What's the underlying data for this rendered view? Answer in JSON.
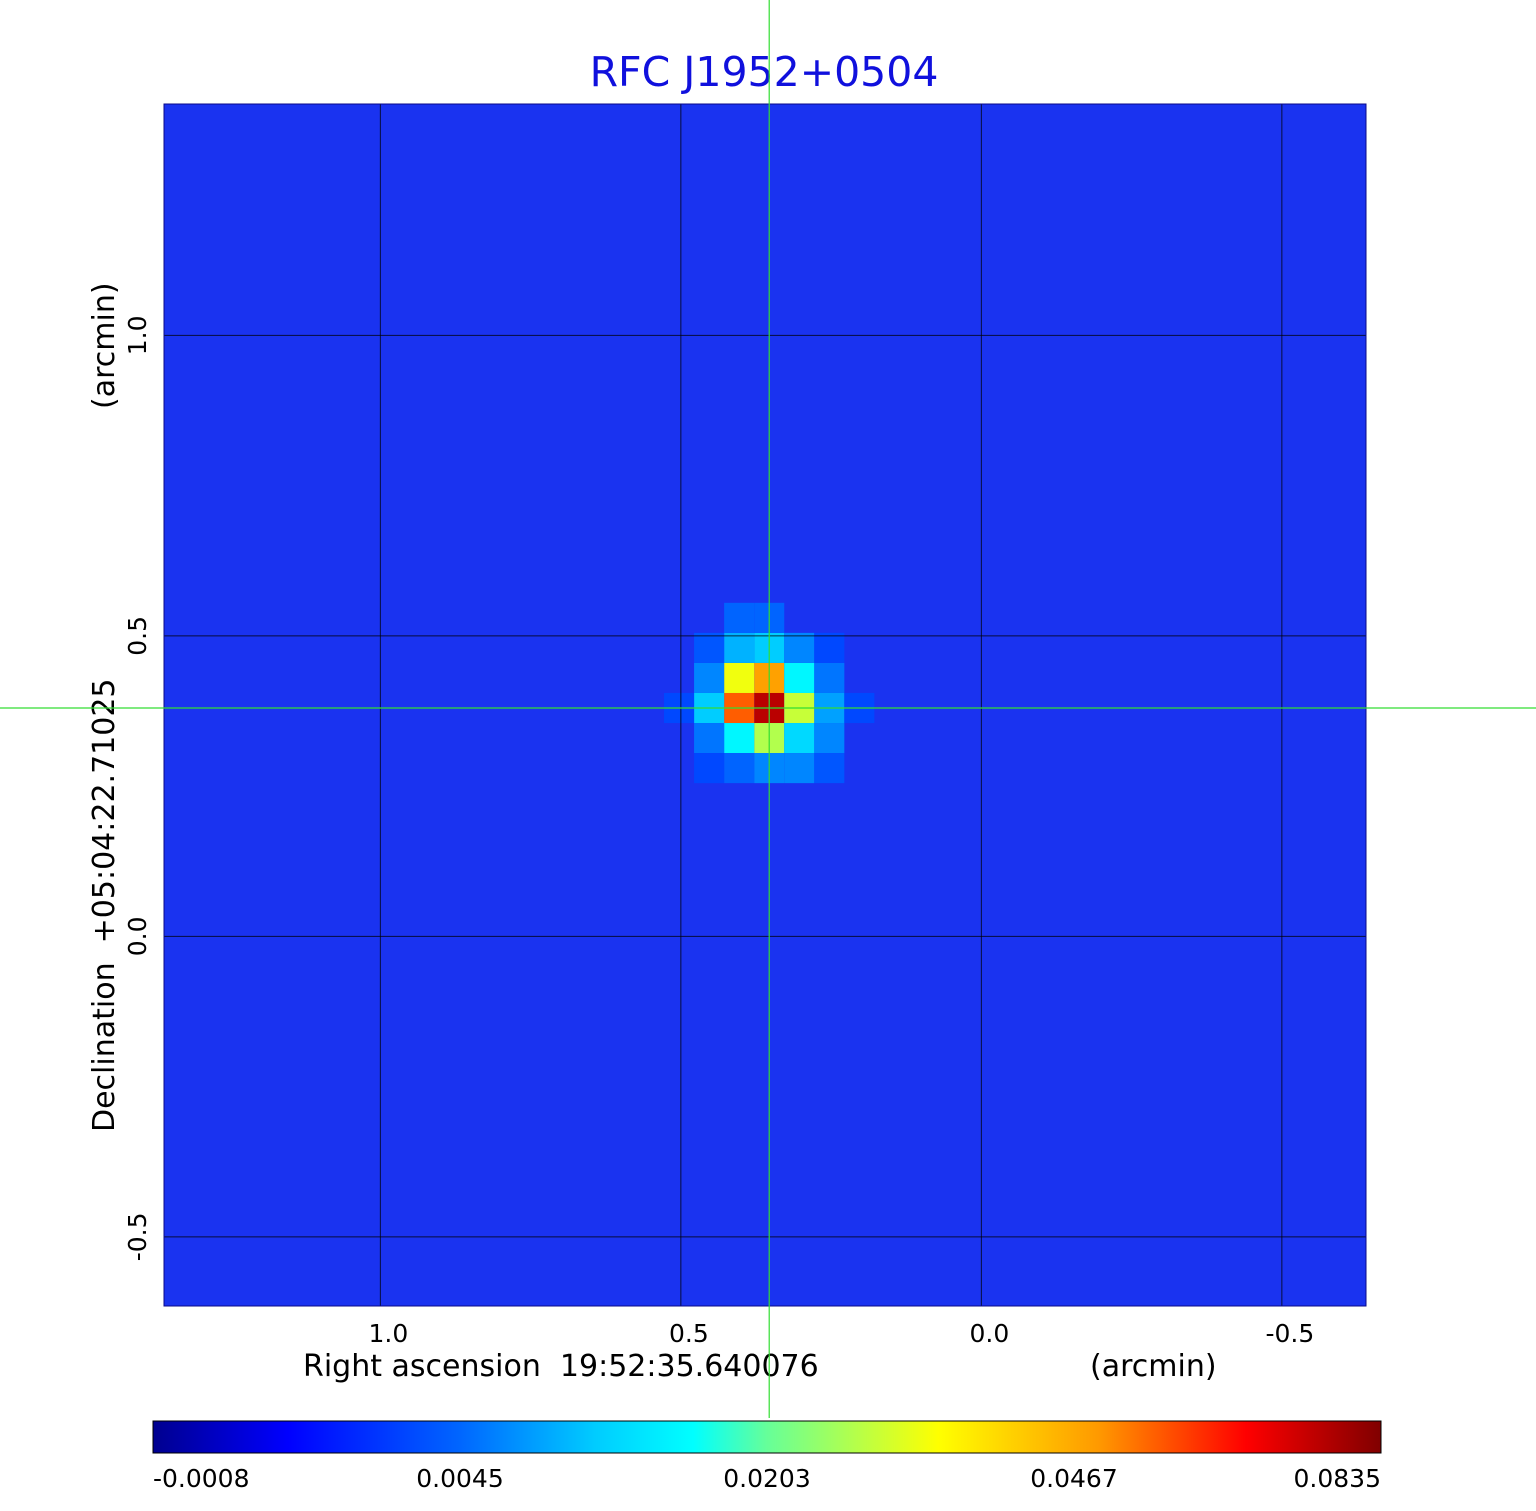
{
  "chart_data": {
    "type": "heatmap",
    "title": "RFC J1952+0504",
    "xlabel": "Right ascension  19:52:35.640076",
    "xunit": "(arcmin)",
    "ylabel": "Declination  +05:04:22.71025",
    "yunit": "(arcmin)",
    "xlim": [
      1.36,
      -0.64
    ],
    "ylim": [
      -0.615,
      1.385
    ],
    "x_ticks": [
      1.0,
      0.5,
      0.0,
      -0.5
    ],
    "x_tick_labels": [
      "1.0",
      "0.5",
      "0.0",
      "-0.5"
    ],
    "y_ticks": [
      -0.5,
      0.0,
      0.5,
      1.0
    ],
    "y_tick_labels": [
      "-0.5",
      "0.0",
      "0.5",
      "1.0"
    ],
    "grid": true,
    "colormap": "jet",
    "crosshair": {
      "x": 0.353,
      "y": 0.38,
      "color": "#33dd33"
    },
    "source": {
      "x": 0.353,
      "y": 0.38,
      "peak": 0.0835
    },
    "background_level": 0.0015,
    "colorbar": {
      "min": -0.0008,
      "max": 0.0835,
      "tick_labels": [
        "-0.0008",
        "0.0045",
        "0.0203",
        "0.0467",
        "0.0835"
      ],
      "tick_values": [
        -0.0008,
        0.0045,
        0.0203,
        0.0467,
        0.0835
      ],
      "placement": "bottom"
    },
    "title_color": "#1010dd"
  }
}
